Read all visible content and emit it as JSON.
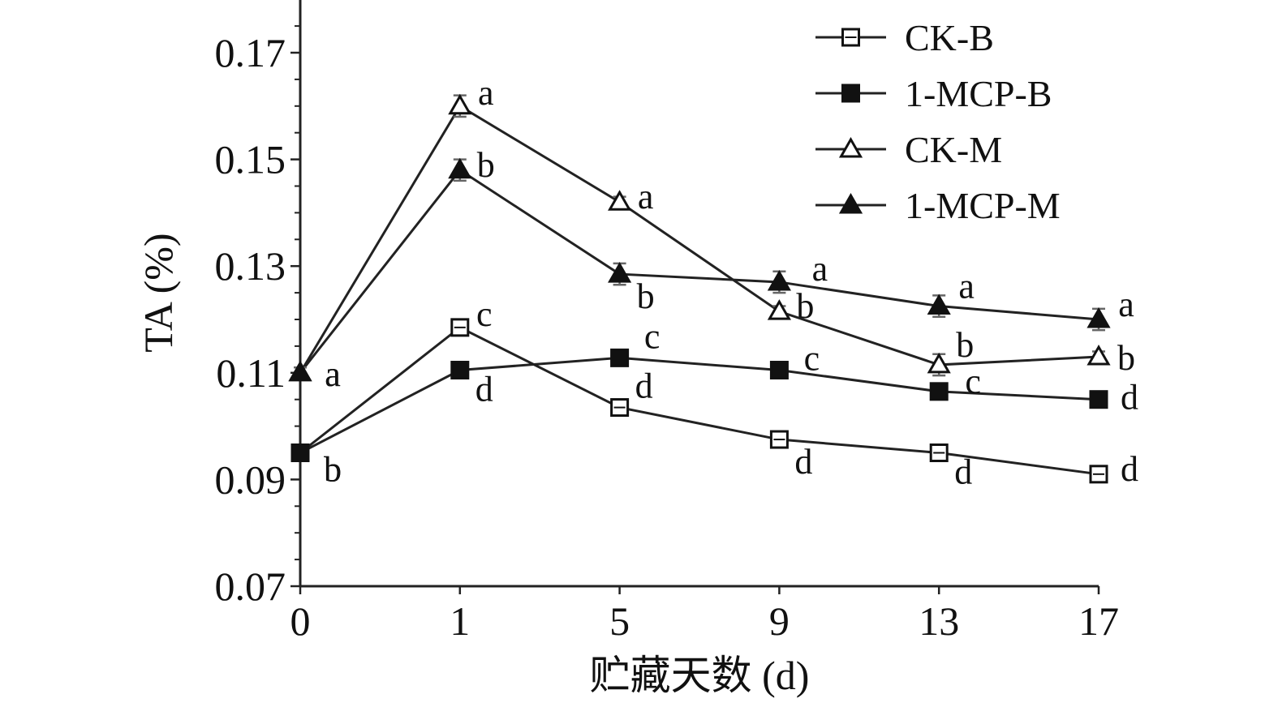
{
  "chart_data": {
    "type": "line",
    "title": "",
    "xlabel": "贮藏天数 (d)",
    "ylabel": "TA (%)",
    "categories": [
      "0",
      "1",
      "5",
      "9",
      "13",
      "17"
    ],
    "ylim": [
      0.07,
      0.18
    ],
    "yticks": [
      "0.07",
      "0.09",
      "0.11",
      "0.13",
      "0.15",
      "0.17"
    ],
    "legend_position": "top-right",
    "grid": false,
    "series": [
      {
        "name": "CK-B",
        "marker": "open-square",
        "values": [
          0.095,
          0.1185,
          0.1035,
          0.0975,
          0.095,
          0.091
        ],
        "errors": [
          0.001,
          0.0015,
          0.0015,
          0.0015,
          0.0015,
          0.0015
        ],
        "labels": [
          "b",
          "c",
          "d",
          "d",
          "d",
          "d"
        ]
      },
      {
        "name": "1-MCP-B",
        "marker": "filled-square",
        "values": [
          0.095,
          0.1105,
          0.1128,
          0.1105,
          0.1065,
          0.105
        ],
        "errors": [
          0.001,
          0.0015,
          0.001,
          0.0015,
          0.0015,
          0.001
        ],
        "labels": [
          "b",
          "d",
          "c",
          "c",
          "c",
          "d"
        ]
      },
      {
        "name": "CK-M",
        "marker": "open-triangle",
        "values": [
          0.11,
          0.16,
          0.142,
          0.1215,
          0.1115,
          0.113
        ],
        "errors": [
          0.001,
          0.002,
          0.001,
          0.001,
          0.002,
          0.001
        ],
        "labels": [
          "a",
          "a",
          "a",
          "b",
          "b",
          "b"
        ]
      },
      {
        "name": "1-MCP-M",
        "marker": "filled-triangle",
        "values": [
          0.11,
          0.148,
          0.1285,
          0.127,
          0.1225,
          0.12
        ],
        "errors": [
          0.001,
          0.002,
          0.002,
          0.002,
          0.002,
          0.002
        ],
        "labels": [
          "a",
          "b",
          "b",
          "a",
          "a",
          "a"
        ]
      }
    ]
  }
}
